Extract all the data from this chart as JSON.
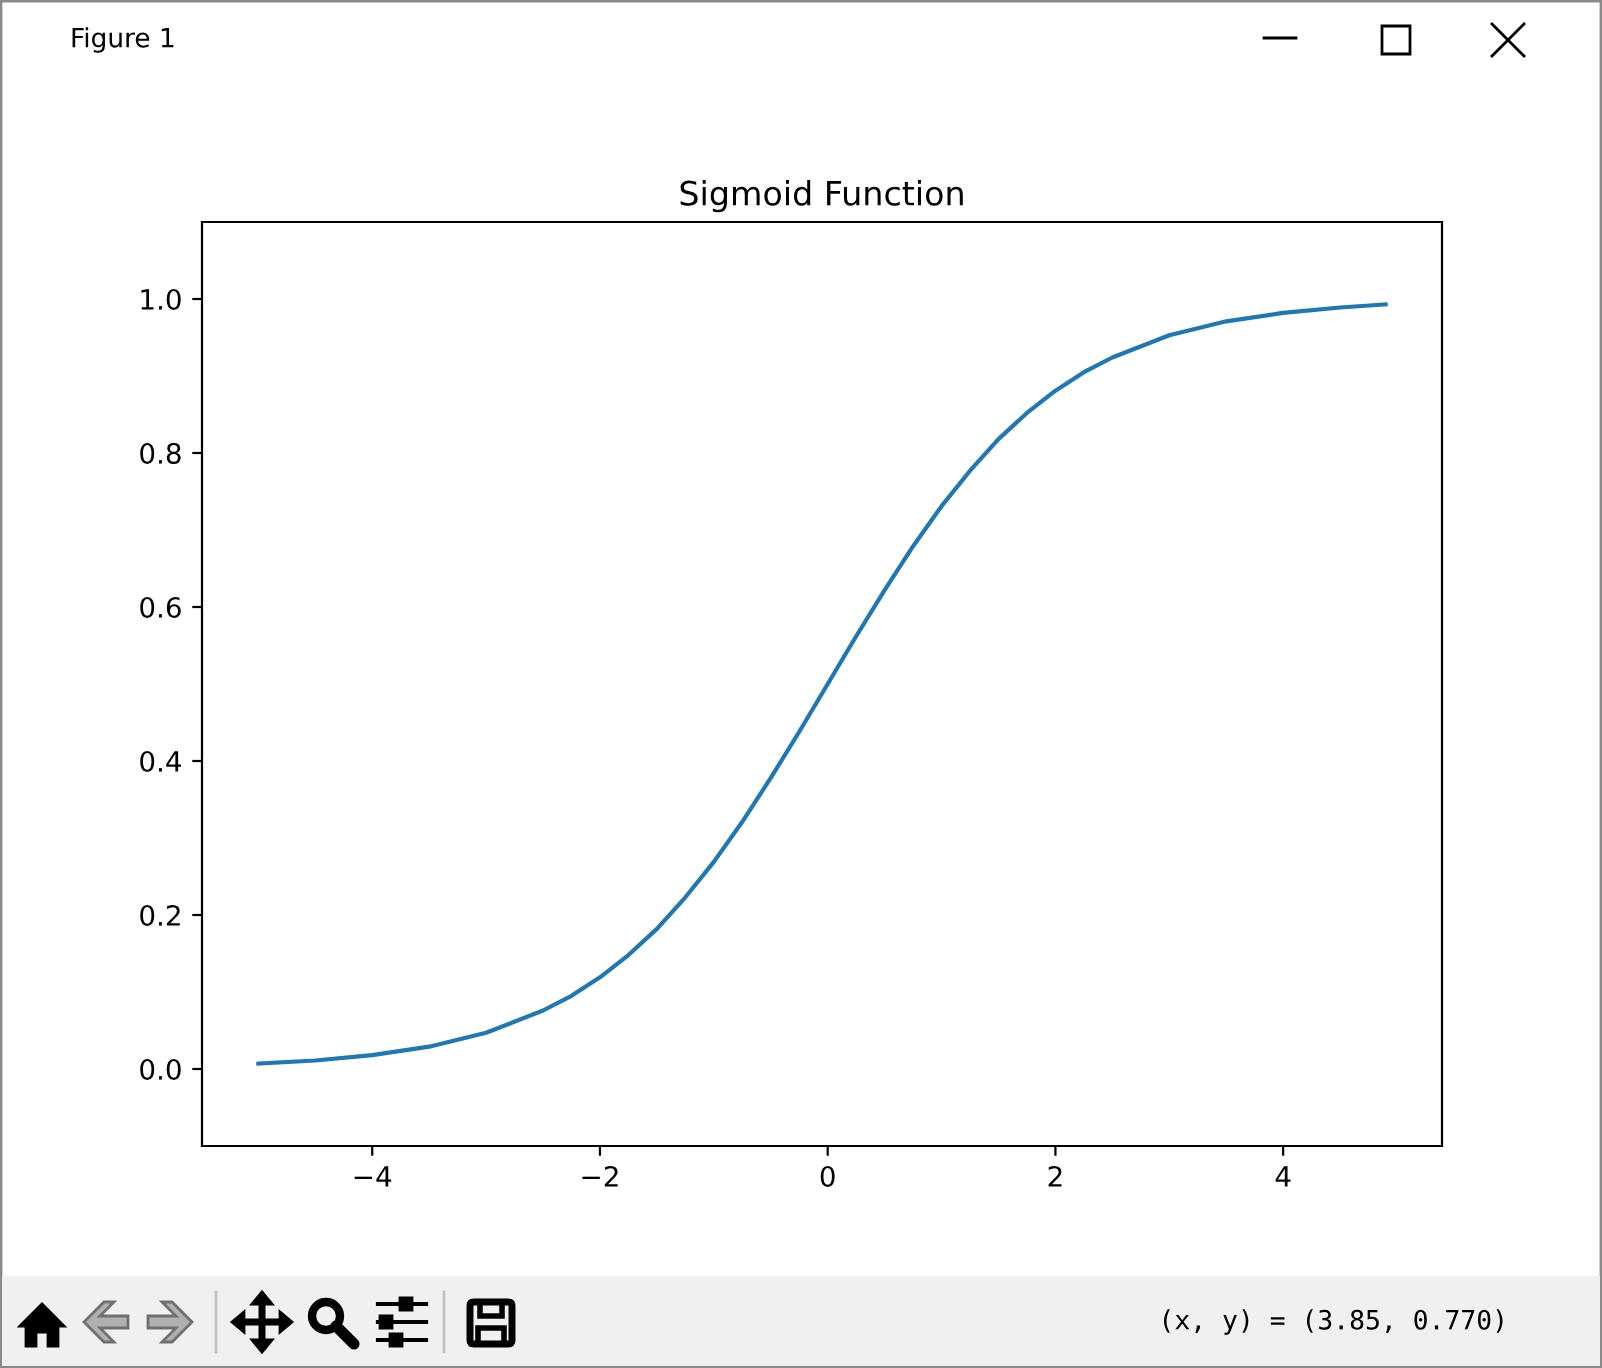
{
  "chart_data": {
    "type": "line",
    "title": "Sigmoid Function",
    "annotations": [
      "Figure 1",
      "(x, y) = (3.85, 0.770)"
    ],
    "x": [
      -5,
      -4.5,
      -4,
      -3.5,
      -3,
      -2.5,
      -2.25,
      -2,
      -1.75,
      -1.5,
      -1.25,
      -1,
      -0.75,
      -0.5,
      -0.25,
      0,
      0.25,
      0.5,
      0.75,
      1,
      1.25,
      1.5,
      1.75,
      2,
      2.25,
      2.5,
      3,
      3.5,
      4,
      4.5,
      4.9
    ],
    "series": [
      {
        "color": "#1f77b4",
        "values": [
          0.007,
          0.011,
          0.018,
          0.029,
          0.047,
          0.076,
          0.095,
          0.119,
          0.148,
          0.182,
          0.223,
          0.269,
          0.321,
          0.378,
          0.438,
          0.5,
          0.562,
          0.622,
          0.679,
          0.731,
          0.777,
          0.818,
          0.852,
          0.881,
          0.905,
          0.924,
          0.953,
          0.971,
          0.982,
          0.989,
          0.993
        ]
      }
    ],
    "xlim": [
      -5.495,
      5.395
    ],
    "ylim": [
      -0.1,
      1.1
    ],
    "xticks": [
      {
        "value": -4,
        "label": "−4"
      },
      {
        "value": -2,
        "label": "−2"
      },
      0,
      2,
      4
    ],
    "yticks": [
      {
        "value": 0,
        "label": "0.0"
      },
      0.2,
      0.4,
      0.6,
      0.8,
      {
        "value": 1,
        "label": "1.0"
      }
    ],
    "grid": false
  }
}
